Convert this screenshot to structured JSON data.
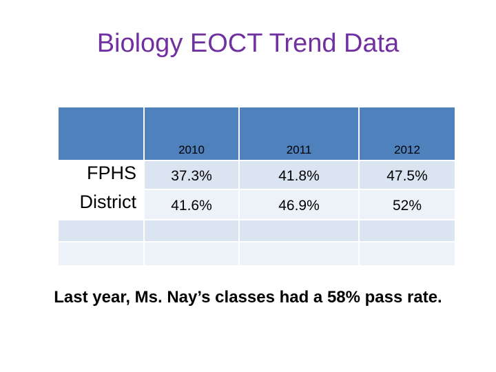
{
  "title": "Biology EOCT Trend Data",
  "table": {
    "columns": [
      "2010",
      "2011",
      "2012"
    ],
    "rows": [
      {
        "label": "FPHS",
        "values": [
          "37.3%",
          "41.8%",
          "47.5%"
        ]
      },
      {
        "label": "District",
        "values": [
          "41.6%",
          "46.9%",
          "52%"
        ]
      }
    ]
  },
  "note": "Last year, Ms. Nay’s classes had a 58% pass rate.",
  "colors": {
    "title": "#7030a0",
    "header": "#4f81bd",
    "row_dark": "#dbe5f1",
    "row_light": "#edf2f8"
  }
}
